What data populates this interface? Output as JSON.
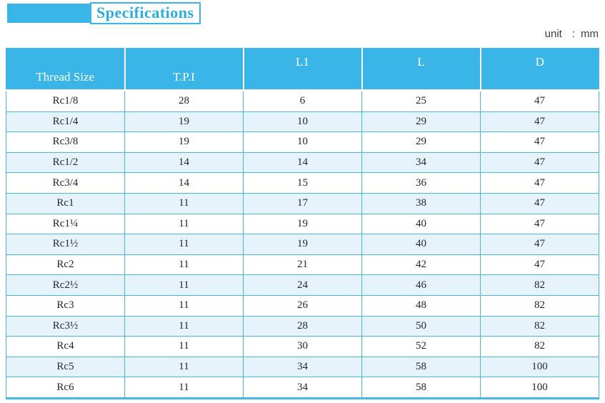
{
  "title": {
    "label": "Specifications"
  },
  "unit": {
    "prefix": "unit",
    "separator": ":",
    "value": "mm"
  },
  "colors": {
    "accent": "#39b5e8",
    "border": "#45b8e5",
    "row_alt": "#e7f3fb",
    "title_text": "#29ade4"
  },
  "table": {
    "columns": [
      "Thread Size",
      "T.P.I",
      "L1",
      "L",
      "D"
    ],
    "rows": [
      [
        "Rc1/8",
        "28",
        "6",
        "25",
        "47"
      ],
      [
        "Rc1/4",
        "19",
        "10",
        "29",
        "47"
      ],
      [
        "Rc3/8",
        "19",
        "10",
        "29",
        "47"
      ],
      [
        "Rc1/2",
        "14",
        "14",
        "34",
        "47"
      ],
      [
        "Rc3/4",
        "14",
        "15",
        "36",
        "47"
      ],
      [
        "Rc1",
        "11",
        "17",
        "38",
        "47"
      ],
      [
        "Rc1¼",
        "11",
        "19",
        "40",
        "47"
      ],
      [
        "Rc1½",
        "11",
        "19",
        "40",
        "47"
      ],
      [
        "Rc2",
        "11",
        "21",
        "42",
        "47"
      ],
      [
        "Rc2½",
        "11",
        "24",
        "46",
        "82"
      ],
      [
        "Rc3",
        "11",
        "26",
        "48",
        "82"
      ],
      [
        "Rc3½",
        "11",
        "28",
        "50",
        "82"
      ],
      [
        "Rc4",
        "11",
        "30",
        "52",
        "82"
      ],
      [
        "Rc5",
        "11",
        "34",
        "58",
        "100"
      ],
      [
        "Rc6",
        "11",
        "34",
        "58",
        "100"
      ]
    ]
  }
}
